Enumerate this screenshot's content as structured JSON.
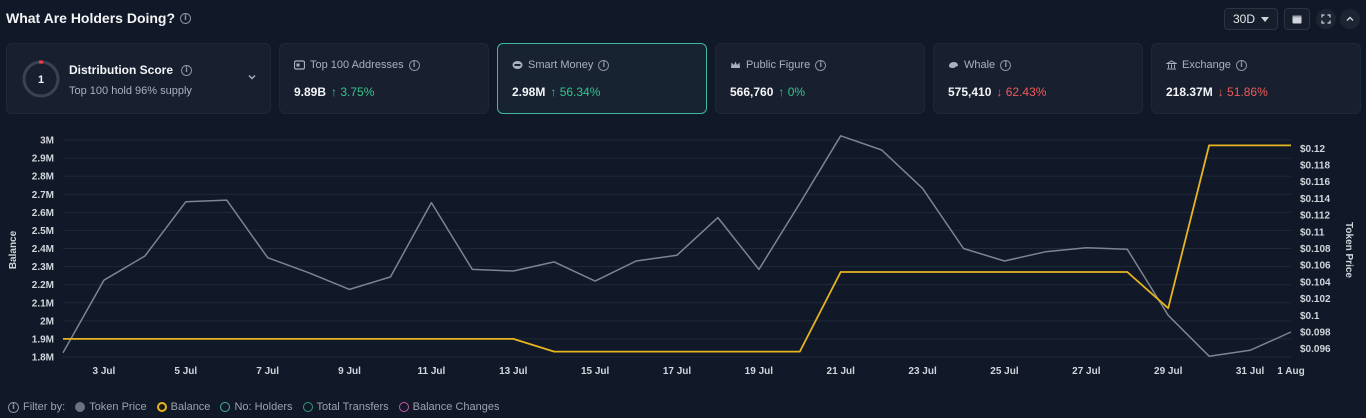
{
  "header": {
    "title": "What Are Holders Doing?",
    "period": "30D"
  },
  "distribution": {
    "score": "1",
    "title": "Distribution Score",
    "subtitle": "Top 100 hold 96% supply"
  },
  "cards": [
    {
      "label": "Top 100 Addresses",
      "value": "9.89B",
      "change": "↑ 3.75%",
      "direction": "up",
      "icon": "server-icon"
    },
    {
      "label": "Smart Money",
      "value": "2.98M",
      "change": "↑ 56.34%",
      "direction": "up",
      "icon": "smart-money-icon",
      "active": true
    },
    {
      "label": "Public Figure",
      "value": "566,760",
      "change": "↑ 0%",
      "direction": "up",
      "icon": "crown-icon"
    },
    {
      "label": "Whale",
      "value": "575,410",
      "change": "↓ 62.43%",
      "direction": "down",
      "icon": "whale-icon"
    },
    {
      "label": "Exchange",
      "value": "218.37M",
      "change": "↓ 51.86%",
      "direction": "down",
      "icon": "bank-icon"
    }
  ],
  "chart_data": {
    "type": "line",
    "ylabel": "Balance",
    "y2label": "Token Price",
    "ylim": [
      1.8,
      3.0
    ],
    "y2lim": [
      0.095,
      0.121
    ],
    "y_ticks": [
      "1.8M",
      "1.9M",
      "2M",
      "2.1M",
      "2.2M",
      "2.3M",
      "2.4M",
      "2.5M",
      "2.6M",
      "2.7M",
      "2.8M",
      "2.9M",
      "3M"
    ],
    "y2_ticks": [
      "$0.096",
      "$0.098",
      "$0.1",
      "$0.102",
      "$0.104",
      "$0.106",
      "$0.108",
      "$0.11",
      "$0.112",
      "$0.114",
      "$0.116",
      "$0.118",
      "$0.12"
    ],
    "x_ticks": [
      "3 Jul",
      "5 Jul",
      "7 Jul",
      "9 Jul",
      "11 Jul",
      "13 Jul",
      "15 Jul",
      "17 Jul",
      "19 Jul",
      "21 Jul",
      "23 Jul",
      "25 Jul",
      "27 Jul",
      "29 Jul",
      "31 Jul",
      "1 Aug"
    ],
    "x": [
      2,
      3,
      4,
      5,
      6,
      7,
      8,
      9,
      10,
      11,
      12,
      13,
      14,
      15,
      16,
      17,
      18,
      19,
      20,
      21,
      22,
      23,
      24,
      25,
      26,
      27,
      28,
      29,
      30,
      31,
      32
    ],
    "series": [
      {
        "name": "Token Price",
        "axis": "right",
        "color": "#7d8590",
        "values": [
          0.0955,
          0.1042,
          0.1071,
          0.1136,
          0.1138,
          0.1069,
          0.1051,
          0.1031,
          0.1046,
          0.1135,
          0.1055,
          0.1053,
          0.1064,
          0.1041,
          0.1065,
          0.1072,
          0.1117,
          0.1055,
          0.1134,
          0.1215,
          0.1198,
          0.1152,
          0.108,
          0.1065,
          0.1076,
          0.1081,
          0.1079,
          0.1,
          0.0951,
          0.0958,
          0.098
        ]
      },
      {
        "name": "Balance",
        "axis": "left",
        "color": "#e7b520",
        "values": [
          1.9,
          1.9,
          1.9,
          1.9,
          1.9,
          1.9,
          1.9,
          1.9,
          1.9,
          1.9,
          1.9,
          1.9,
          1.83,
          1.83,
          1.83,
          1.83,
          1.83,
          1.83,
          1.83,
          2.27,
          2.27,
          2.27,
          2.27,
          2.27,
          2.27,
          2.27,
          2.27,
          2.07,
          2.97,
          2.97,
          2.97
        ]
      }
    ]
  },
  "filter": {
    "label": "Filter by:",
    "items": [
      {
        "label": "Token Price",
        "color": "#6b7280",
        "filled": true
      },
      {
        "label": "Balance",
        "color": "#e7b520",
        "filled": true
      },
      {
        "label": "No: Holders",
        "color": "#3fb89b",
        "filled": false
      },
      {
        "label": "Total Transfers",
        "color": "#2f9e78",
        "filled": false
      },
      {
        "label": "Balance Changes",
        "color": "#c05ca8",
        "filled": false
      }
    ]
  }
}
